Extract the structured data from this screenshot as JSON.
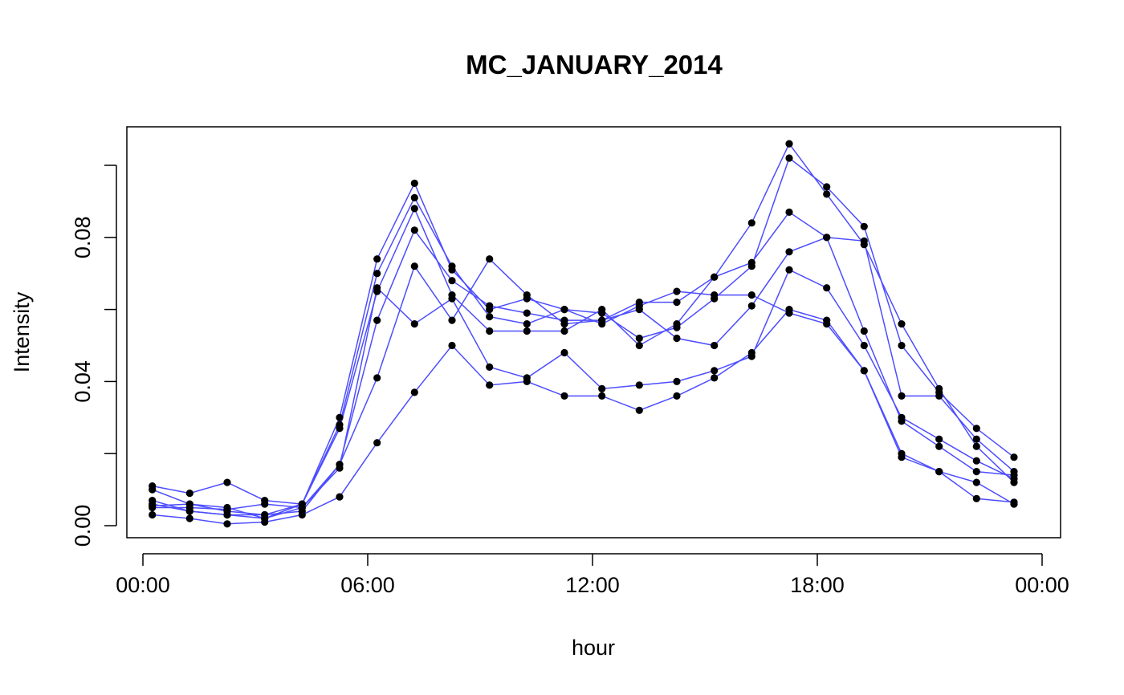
{
  "chart_data": {
    "type": "line",
    "title": "MC_JANUARY_2014",
    "xlabel": "hour",
    "ylabel": "Intensity",
    "x_unit": "hours",
    "xlim": [
      0,
      24
    ],
    "x_ticks": [
      0,
      6,
      12,
      18,
      24
    ],
    "x_tick_labels": [
      "00:00",
      "06:00",
      "12:00",
      "18:00",
      "00:00"
    ],
    "ylim": [
      0,
      0.1
    ],
    "y_ticks": [
      0.0,
      0.04,
      0.08
    ],
    "y_tick_labels": [
      "0.00",
      "0.04",
      "0.08"
    ],
    "x": [
      0.25,
      1.25,
      2.25,
      3.25,
      4.25,
      5.25,
      6.25,
      7.25,
      8.25,
      9.25,
      10.25,
      11.25,
      12.25,
      13.25,
      14.25,
      15.25,
      16.25,
      17.25,
      18.25,
      19.25,
      20.25,
      21.25,
      22.25,
      23.25
    ],
    "grid": false,
    "legend": "none",
    "line_color": "#4d4dff",
    "marker_color": "#000000",
    "series": [
      {
        "values": [
          0.0055,
          0.006,
          0.004,
          0.003,
          0.006,
          0.03,
          0.074,
          0.095,
          0.071,
          0.06,
          0.063,
          0.06,
          0.056,
          0.061,
          0.065,
          0.064,
          0.064,
          0.059,
          0.056,
          0.043,
          0.02,
          0.015,
          0.012,
          0.006
        ]
      },
      {
        "values": [
          0.007,
          0.004,
          0.003,
          0.002,
          0.006,
          0.028,
          0.07,
          0.091,
          0.072,
          0.058,
          0.056,
          0.06,
          0.059,
          0.052,
          0.055,
          0.063,
          0.072,
          0.102,
          0.094,
          0.083,
          0.05,
          0.037,
          0.027,
          0.019
        ]
      },
      {
        "values": [
          0.011,
          0.009,
          0.012,
          0.007,
          0.006,
          0.027,
          0.065,
          0.088,
          0.064,
          0.054,
          0.054,
          0.054,
          0.06,
          0.05,
          0.056,
          0.069,
          0.084,
          0.106,
          0.092,
          0.078,
          0.056,
          0.038,
          0.022,
          0.012
        ]
      },
      {
        "values": [
          0.01,
          0.006,
          0.005,
          0.002,
          0.005,
          0.017,
          0.057,
          0.082,
          0.068,
          0.061,
          0.059,
          0.057,
          0.057,
          0.062,
          0.062,
          0.069,
          0.073,
          0.087,
          0.08,
          0.079,
          0.036,
          0.036,
          0.024,
          0.015
        ]
      },
      {
        "values": [
          0.006,
          0.004,
          0.003,
          0.003,
          0.004,
          0.017,
          0.041,
          0.072,
          0.057,
          0.074,
          0.064,
          0.056,
          0.057,
          0.06,
          0.052,
          0.05,
          0.061,
          0.076,
          0.08,
          0.054,
          0.029,
          0.022,
          0.015,
          0.014
        ]
      },
      {
        "values": [
          0.005,
          0.005,
          0.0045,
          0.006,
          0.005,
          0.016,
          0.066,
          0.056,
          0.063,
          0.044,
          0.041,
          0.048,
          0.038,
          0.039,
          0.04,
          0.043,
          0.047,
          0.071,
          0.066,
          0.05,
          0.03,
          0.024,
          0.018,
          0.013
        ]
      },
      {
        "values": [
          0.003,
          0.002,
          0.0005,
          0.001,
          0.003,
          0.008,
          0.023,
          0.037,
          0.05,
          0.039,
          0.04,
          0.036,
          0.036,
          0.032,
          0.036,
          0.041,
          0.048,
          0.06,
          0.057,
          0.043,
          0.019,
          0.015,
          0.0075,
          0.0065
        ]
      }
    ]
  }
}
